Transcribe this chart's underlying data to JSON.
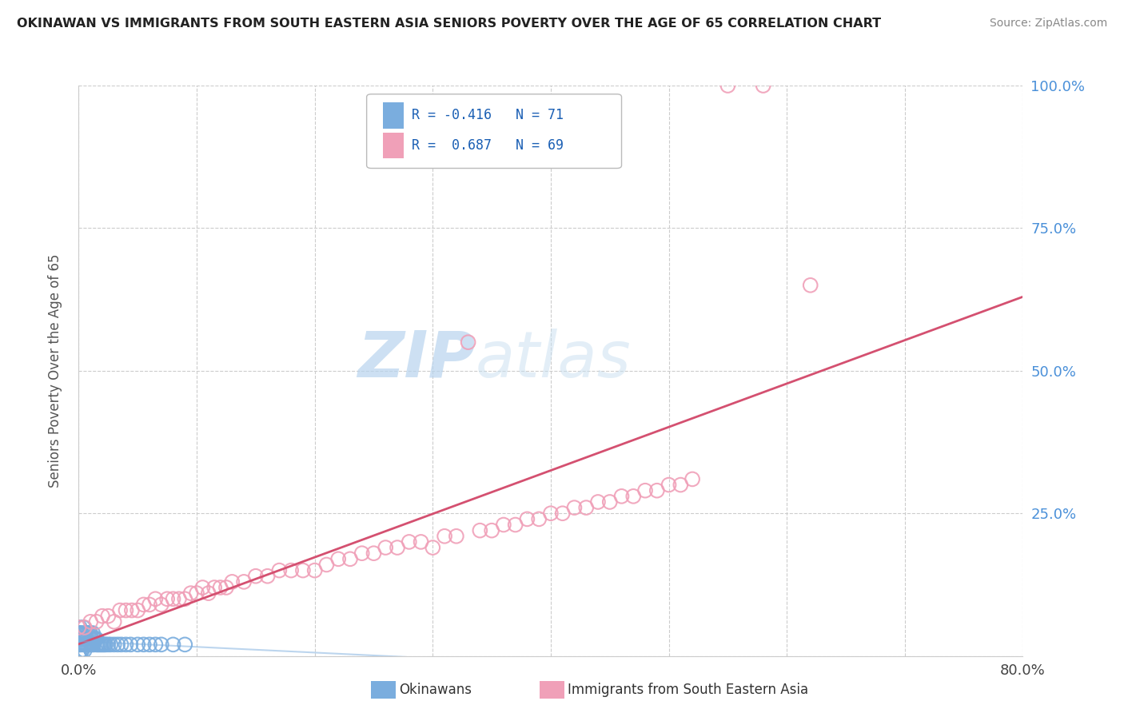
{
  "title": "OKINAWAN VS IMMIGRANTS FROM SOUTH EASTERN ASIA SENIORS POVERTY OVER THE AGE OF 65 CORRELATION CHART",
  "source": "Source: ZipAtlas.com",
  "ylabel": "Seniors Poverty Over the Age of 65",
  "xlim": [
    0.0,
    0.8
  ],
  "ylim": [
    0.0,
    1.0
  ],
  "xtick_vals": [
    0.0,
    0.1,
    0.2,
    0.3,
    0.4,
    0.5,
    0.6,
    0.7,
    0.8
  ],
  "ytick_vals": [
    0.0,
    0.25,
    0.5,
    0.75,
    1.0
  ],
  "xtick_labels": [
    "0.0%",
    "",
    "",
    "",
    "",
    "",
    "",
    "",
    "80.0%"
  ],
  "ytick_labels": [
    "",
    "25.0%",
    "50.0%",
    "75.0%",
    "100.0%"
  ],
  "color_okinawan": "#7aadde",
  "color_immigrant": "#f0a0b8",
  "color_regression_immigrant": "#d45070",
  "watermark_zip": "ZIP",
  "watermark_atlas": "atlas",
  "background_color": "#ffffff",
  "grid_color": "#cccccc",
  "legend_text1": "R = -0.416   N = 71",
  "legend_text2": "R =  0.687   N = 69",
  "legend_color_text": "#1a5fb4",
  "tick_label_color": "#4a90d9",
  "title_color": "#222222",
  "source_color": "#888888",
  "ok_x": [
    0.0,
    0.0,
    0.0,
    0.0,
    0.0,
    0.0,
    0.0,
    0.0,
    0.0,
    0.0,
    0.001,
    0.001,
    0.001,
    0.001,
    0.001,
    0.002,
    0.002,
    0.002,
    0.003,
    0.003,
    0.003,
    0.004,
    0.004,
    0.004,
    0.005,
    0.005,
    0.005,
    0.005,
    0.005,
    0.006,
    0.006,
    0.006,
    0.007,
    0.007,
    0.008,
    0.008,
    0.009,
    0.009,
    0.01,
    0.01,
    0.011,
    0.011,
    0.012,
    0.012,
    0.013,
    0.013,
    0.014,
    0.015,
    0.015,
    0.016,
    0.017,
    0.018,
    0.019,
    0.02,
    0.021,
    0.022,
    0.023,
    0.025,
    0.027,
    0.03,
    0.033,
    0.036,
    0.04,
    0.044,
    0.05,
    0.055,
    0.06,
    0.065,
    0.07,
    0.08,
    0.09
  ],
  "ok_y": [
    0.0,
    0.0,
    0.0,
    0.02,
    0.02,
    0.03,
    0.03,
    0.03,
    0.04,
    0.04,
    0.0,
    0.02,
    0.03,
    0.04,
    0.05,
    0.01,
    0.02,
    0.04,
    0.01,
    0.03,
    0.04,
    0.02,
    0.03,
    0.05,
    0.01,
    0.02,
    0.02,
    0.03,
    0.04,
    0.02,
    0.03,
    0.04,
    0.02,
    0.04,
    0.02,
    0.04,
    0.02,
    0.04,
    0.02,
    0.04,
    0.02,
    0.03,
    0.02,
    0.04,
    0.02,
    0.03,
    0.03,
    0.02,
    0.03,
    0.02,
    0.02,
    0.02,
    0.02,
    0.02,
    0.02,
    0.02,
    0.02,
    0.02,
    0.02,
    0.02,
    0.02,
    0.02,
    0.02,
    0.02,
    0.02,
    0.02,
    0.02,
    0.02,
    0.02,
    0.02,
    0.02
  ],
  "im_x": [
    0.0,
    0.005,
    0.01,
    0.015,
    0.02,
    0.025,
    0.03,
    0.035,
    0.04,
    0.045,
    0.05,
    0.055,
    0.06,
    0.065,
    0.07,
    0.075,
    0.08,
    0.085,
    0.09,
    0.095,
    0.1,
    0.105,
    0.11,
    0.115,
    0.12,
    0.125,
    0.13,
    0.14,
    0.15,
    0.16,
    0.17,
    0.18,
    0.19,
    0.2,
    0.21,
    0.22,
    0.23,
    0.24,
    0.25,
    0.26,
    0.27,
    0.28,
    0.29,
    0.3,
    0.31,
    0.32,
    0.33,
    0.34,
    0.35,
    0.36,
    0.37,
    0.38,
    0.39,
    0.4,
    0.41,
    0.42,
    0.43,
    0.44,
    0.45,
    0.46,
    0.47,
    0.48,
    0.49,
    0.5,
    0.51,
    0.52,
    0.55,
    0.58,
    0.62
  ],
  "im_y": [
    0.05,
    0.05,
    0.06,
    0.06,
    0.07,
    0.07,
    0.06,
    0.08,
    0.08,
    0.08,
    0.08,
    0.09,
    0.09,
    0.1,
    0.09,
    0.1,
    0.1,
    0.1,
    0.1,
    0.11,
    0.11,
    0.12,
    0.11,
    0.12,
    0.12,
    0.12,
    0.13,
    0.13,
    0.14,
    0.14,
    0.15,
    0.15,
    0.15,
    0.15,
    0.16,
    0.17,
    0.17,
    0.18,
    0.18,
    0.19,
    0.19,
    0.2,
    0.2,
    0.19,
    0.21,
    0.21,
    0.55,
    0.22,
    0.22,
    0.23,
    0.23,
    0.24,
    0.24,
    0.25,
    0.25,
    0.26,
    0.26,
    0.27,
    0.27,
    0.28,
    0.28,
    0.29,
    0.29,
    0.3,
    0.3,
    0.31,
    1.0,
    1.0,
    0.65
  ]
}
